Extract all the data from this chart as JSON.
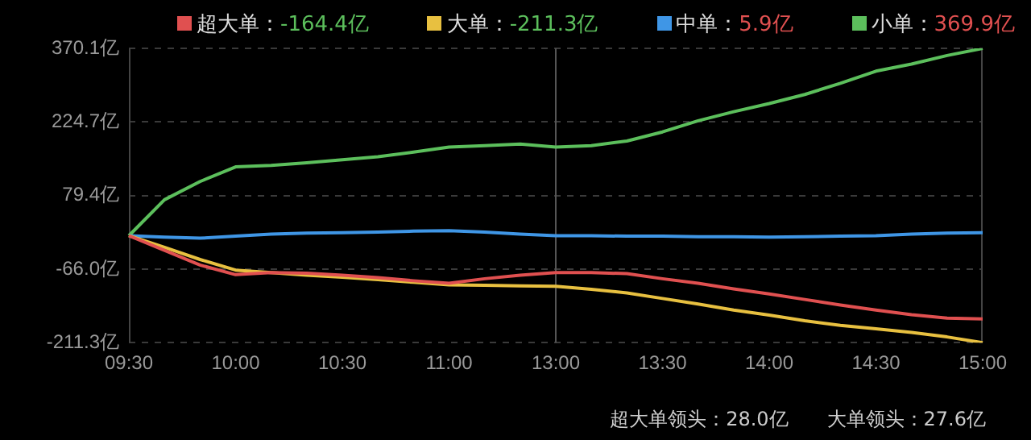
{
  "chart_data": {
    "type": "line",
    "legend": "top",
    "grid": "y",
    "marker": "none",
    "line_style": "solid",
    "categories": [
      "09:30",
      null,
      null,
      "10:00",
      null,
      null,
      "10:30",
      null,
      null,
      "11:00",
      null,
      null,
      "13:00",
      null,
      null,
      "13:30",
      null,
      null,
      "14:00",
      null,
      null,
      "14:30",
      null,
      null,
      "15:00"
    ],
    "ylim": [
      -211.3,
      370.1
    ],
    "yticks": [
      {
        "value": -211.3,
        "label": "-211.3亿"
      },
      {
        "value": -66.0,
        "label": "-66.0亿"
      },
      {
        "value": 79.4,
        "label": "79.4亿"
      },
      {
        "value": 224.7,
        "label": "224.7亿"
      },
      {
        "value": 370.1,
        "label": "370.1亿"
      }
    ],
    "series": [
      {
        "name": "超大单：",
        "color": "#e05050",
        "values": [
          0,
          -29,
          -58,
          -77,
          -73,
          -74,
          -78,
          -83,
          -89,
          -94,
          -85,
          -78,
          -73,
          -73,
          -75,
          -85,
          -94,
          -105,
          -115,
          -126,
          -137,
          -147,
          -156,
          -163,
          -164.4
        ]
      },
      {
        "name": "大单：",
        "color": "#e8c040",
        "values": [
          0,
          -23,
          -47,
          -68,
          -73,
          -78,
          -82,
          -87,
          -92,
          -97,
          -98,
          -99,
          -100,
          -106,
          -113,
          -124,
          -135,
          -147,
          -157,
          -168,
          -177,
          -184,
          -191,
          -200,
          -211.3
        ]
      },
      {
        "name": "中单：",
        "color": "#3f96e6",
        "values": [
          0,
          -3,
          -5,
          -1,
          3,
          5,
          6,
          7,
          9,
          10,
          7,
          3,
          0,
          0,
          -1,
          -1,
          -2,
          -2,
          -3,
          -2,
          -1,
          0,
          3,
          5,
          5.9
        ]
      },
      {
        "name": "小单：",
        "color": "#5cbf5c",
        "values": [
          0,
          71,
          107,
          136,
          139,
          144,
          150,
          156,
          165,
          175,
          178,
          181,
          175,
          178,
          187,
          205,
          227,
          245,
          261,
          279,
          301,
          325,
          339,
          356,
          369.9
        ]
      }
    ],
    "ref_lines": [
      {
        "axis": "x",
        "value": "13:00",
        "color": "#555555"
      }
    ],
    "annotations": [
      "-164.4亿",
      "-211.3亿",
      "5.9亿",
      "369.9亿",
      "超大单领头：28.0亿",
      "大单领头：27.6亿"
    ]
  }
}
